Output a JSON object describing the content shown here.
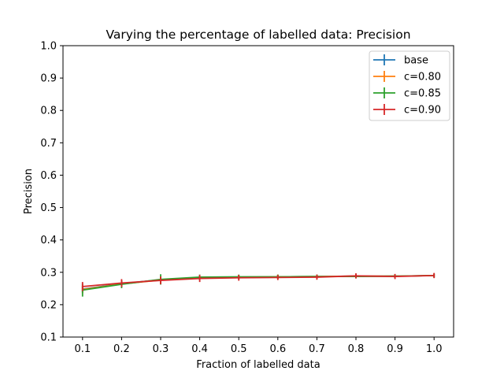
{
  "chart_data": {
    "type": "line",
    "title": "Varying the percentage of labelled data: Precision",
    "xlabel": "Fraction of labelled data",
    "ylabel": "Precision",
    "xlim": [
      0.05,
      1.05
    ],
    "ylim": [
      0.1,
      1.0
    ],
    "x": [
      0.1,
      0.2,
      0.3,
      0.4,
      0.5,
      0.6,
      0.7,
      0.8,
      0.9,
      1.0
    ],
    "xticks": [
      "0.1",
      "0.2",
      "0.3",
      "0.4",
      "0.5",
      "0.6",
      "0.7",
      "0.8",
      "0.9",
      "1.0"
    ],
    "yticks": [
      "0.1",
      "0.2",
      "0.3",
      "0.4",
      "0.5",
      "0.6",
      "0.7",
      "0.8",
      "0.9",
      "1.0"
    ],
    "grid": false,
    "legend_position": "top-right",
    "series": [
      {
        "name": "base",
        "color": "#1f77b4",
        "values": [
          0.248,
          0.265,
          0.277,
          0.284,
          0.285,
          0.286,
          0.287,
          0.288,
          0.288,
          0.29
        ],
        "errors": [
          0.01,
          0.009,
          0.008,
          0.007,
          0.006,
          0.006,
          0.006,
          0.006,
          0.006,
          0.006
        ]
      },
      {
        "name": "c=0.80",
        "color": "#ff7f0e",
        "values": [
          0.247,
          0.264,
          0.276,
          0.283,
          0.285,
          0.286,
          0.287,
          0.288,
          0.288,
          0.29
        ],
        "errors": [
          0.012,
          0.011,
          0.01,
          0.008,
          0.007,
          0.007,
          0.006,
          0.006,
          0.006,
          0.006
        ]
      },
      {
        "name": "c=0.85",
        "color": "#2ca02c",
        "values": [
          0.245,
          0.263,
          0.278,
          0.285,
          0.286,
          0.286,
          0.287,
          0.287,
          0.288,
          0.29
        ],
        "errors": [
          0.02,
          0.012,
          0.016,
          0.008,
          0.007,
          0.007,
          0.006,
          0.006,
          0.006,
          0.006
        ]
      },
      {
        "name": "c=0.90",
        "color": "#d62728",
        "values": [
          0.256,
          0.267,
          0.275,
          0.281,
          0.283,
          0.284,
          0.285,
          0.289,
          0.287,
          0.29
        ],
        "errors": [
          0.014,
          0.012,
          0.012,
          0.011,
          0.009,
          0.008,
          0.008,
          0.008,
          0.008,
          0.008
        ]
      }
    ]
  }
}
